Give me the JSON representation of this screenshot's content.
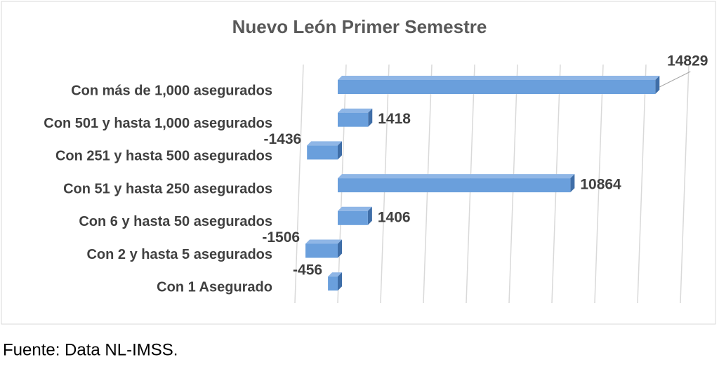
{
  "chart_data": {
    "type": "bar",
    "orientation": "horizontal",
    "title": "Nuevo León Primer Semestre",
    "categories": [
      "Con más de 1,000 asegurados",
      "Con 501 y hasta 1,000 asegurados",
      "Con 251 y hasta 500 asegurados",
      "Con 51 y hasta 250 asegurados",
      "Con 6 y hasta 50 asegurados",
      "Con 2 y hasta 5 asegurados",
      "Con 1 Asegurado"
    ],
    "values": [
      14829,
      1418,
      -1436,
      10864,
      1406,
      -1506,
      -456
    ],
    "color": "#6a9fdc",
    "xlim": [
      -2000,
      16000
    ],
    "xticks": [
      -2000,
      0,
      2000,
      4000,
      6000,
      8000,
      10000,
      12000,
      14000,
      16000
    ],
    "xtick_labels": false,
    "grid": true,
    "source": "Fuente: Data NL-IMSS."
  }
}
